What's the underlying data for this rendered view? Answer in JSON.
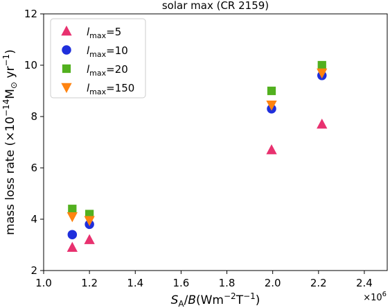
{
  "chart_data": {
    "type": "scatter",
    "title": "solar max (CR 2159)",
    "xlabel": {
      "var": "S",
      "sub": "A",
      "rest": "/B",
      "italic_b": "B",
      "units_pre": "(Wm",
      "exp1": "−2",
      "mid": "T",
      "exp2": "−1",
      "units_post": ")"
    },
    "ylabel": {
      "pre": "mass loss rate (×10",
      "exp": "−14",
      "mid": "M",
      "sub": "⊙",
      "unit": " yr",
      "exp2": "−1",
      "post": ")"
    },
    "x_offset_label": {
      "base": "×10",
      "exp": "6"
    },
    "xlim": [
      1.0,
      2.5
    ],
    "ylim": [
      2,
      12
    ],
    "x_ticks": [
      1.0,
      1.2,
      1.4,
      1.6,
      1.8,
      2.0,
      2.2,
      2.4
    ],
    "x_tick_labels": [
      "1.0",
      "1.2",
      "1.4",
      "1.6",
      "1.8",
      "2.0",
      "2.2",
      "2.4"
    ],
    "y_ticks": [
      2,
      4,
      6,
      8,
      10,
      12
    ],
    "y_tick_labels": [
      "2",
      "4",
      "6",
      "8",
      "10",
      "12"
    ],
    "grid": false,
    "legend_position": "top-left",
    "x_scale_factor": "1e6",
    "series": [
      {
        "legend_var": "l",
        "legend_sub": "max",
        "legend_val": "=5",
        "marker": "triangle-up",
        "color": "#e8316f",
        "x": [
          1.125,
          1.2,
          1.995,
          2.215
        ],
        "y": [
          2.9,
          3.2,
          6.7,
          7.7
        ]
      },
      {
        "legend_var": "l",
        "legend_sub": "max",
        "legend_val": "=10",
        "marker": "circle",
        "color": "#1f2fdc",
        "x": [
          1.125,
          1.2,
          1.995,
          2.215
        ],
        "y": [
          3.4,
          3.8,
          8.3,
          9.6
        ]
      },
      {
        "legend_var": "l",
        "legend_sub": "max",
        "legend_val": "=20",
        "marker": "square",
        "color": "#52b01f",
        "x": [
          1.125,
          1.2,
          1.995,
          2.215
        ],
        "y": [
          4.4,
          4.2,
          9.0,
          10.0
        ]
      },
      {
        "legend_var": "l",
        "legend_sub": "max",
        "legend_val": "=150",
        "marker": "triangle-down",
        "color": "#ff8310",
        "x": [
          1.125,
          1.2,
          1.995,
          2.215
        ],
        "y": [
          4.1,
          3.95,
          8.45,
          9.7
        ]
      }
    ]
  }
}
